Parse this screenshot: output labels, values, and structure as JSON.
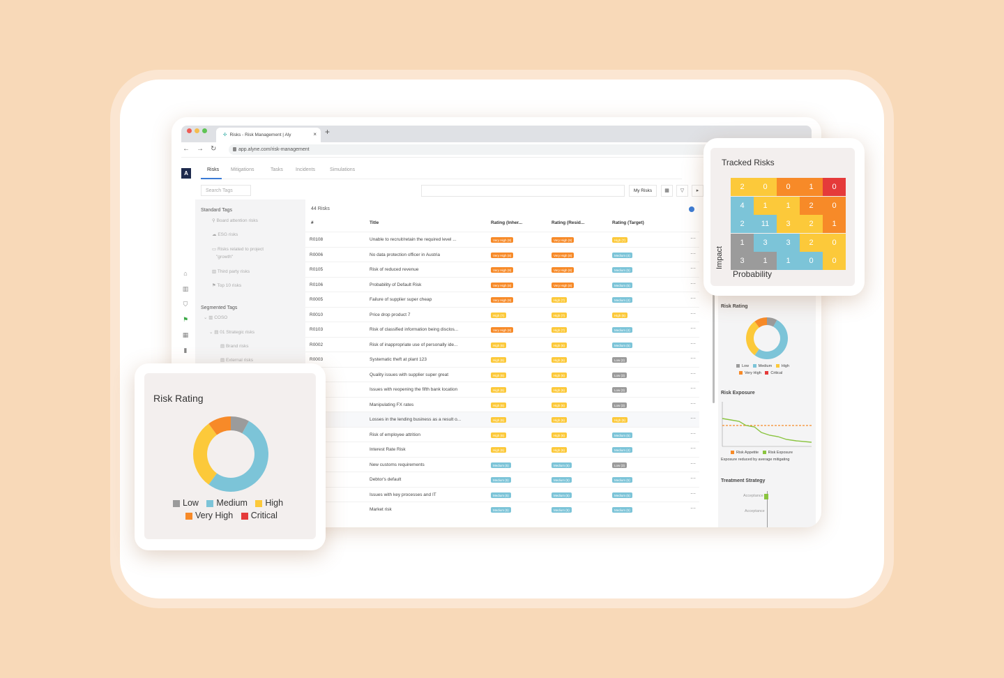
{
  "colors": {
    "low": "#9b9b9b",
    "medium": "#7cc4d8",
    "high": "#fcc93a",
    "very_high": "#f78a28",
    "critical": "#e53a3a",
    "accent": "#3a7bd5"
  },
  "browser": {
    "tab_title": "Risks - Risk Management | Aly",
    "tab_close": "×",
    "new_tab": "+",
    "url": "app.alyne.com/risk-management",
    "back": "←",
    "forward": "→",
    "reload": "↻"
  },
  "app": {
    "logo": "A",
    "tabs": [
      "Risks",
      "Mitigations",
      "Tasks",
      "Incidents",
      "Simulations"
    ],
    "search_tags_placeholder": "Search Tags",
    "my_risks": "My Risks"
  },
  "tags": {
    "standard_title": "Standard Tags",
    "standard": [
      "Board attention risks",
      "ESG risks",
      "Risks related to project",
      "\"growth\"",
      "Third party risks",
      "Top 10 risks"
    ],
    "segmented_title": "Segmented Tags",
    "segmented": [
      "COSO",
      "01 Strategic risks",
      "Brand risks",
      "External risks"
    ]
  },
  "table": {
    "count": "44 Risks",
    "headers": [
      "#",
      "Title",
      "Rating (Inher...",
      "Rating (Resid...",
      "Rating (Target)"
    ],
    "more": "···",
    "rows": [
      {
        "id": "R0108",
        "title": "Unable to recruit/retain the required level ...",
        "inh": "Very High (9)",
        "inh_c": "very_high",
        "res": "Very High (9)",
        "res_c": "very_high",
        "tgt": "High (7)",
        "tgt_c": "high"
      },
      {
        "id": "R0006",
        "title": "No data protection officer in Austria",
        "inh": "Very High (8)",
        "inh_c": "very_high",
        "res": "Very High (8)",
        "res_c": "very_high",
        "tgt": "Medium (4)",
        "tgt_c": "medium"
      },
      {
        "id": "R0105",
        "title": "Risk of reduced revenue",
        "inh": "Very High (9)",
        "inh_c": "very_high",
        "res": "Very High (8)",
        "res_c": "very_high",
        "tgt": "Medium (5)",
        "tgt_c": "medium"
      },
      {
        "id": "R0106",
        "title": "Probability of Default Risk",
        "inh": "Very High (8)",
        "inh_c": "very_high",
        "res": "Very High (8)",
        "res_c": "very_high",
        "tgt": "Medium (5)",
        "tgt_c": "medium"
      },
      {
        "id": "R0005",
        "title": "Failure of supplier super cheap",
        "inh": "Very High (9)",
        "inh_c": "very_high",
        "res": "High (7)",
        "res_c": "high",
        "tgt": "Medium (4)",
        "tgt_c": "medium"
      },
      {
        "id": "R0010",
        "title": "Price drop product 7",
        "inh": "High (7)",
        "inh_c": "high",
        "res": "High (7)",
        "res_c": "high",
        "tgt": "High (6)",
        "tgt_c": "high"
      },
      {
        "id": "R0103",
        "title": "Risk of classified information being disclos...",
        "inh": "Very High (8)",
        "inh_c": "very_high",
        "res": "High (7)",
        "res_c": "high",
        "tgt": "Medium (4)",
        "tgt_c": "medium"
      },
      {
        "id": "R0002",
        "title": "Risk of inappropriate use of personally ide...",
        "inh": "High (6)",
        "inh_c": "high",
        "res": "High (6)",
        "res_c": "high",
        "tgt": "Medium (5)",
        "tgt_c": "medium"
      },
      {
        "id": "R0003",
        "title": "Systematic theft at plant 123",
        "inh": "High (6)",
        "inh_c": "high",
        "res": "High (6)",
        "res_c": "high",
        "tgt": "Low (2)",
        "tgt_c": "low"
      },
      {
        "id": "",
        "title": "Quality issues with supplier super great",
        "inh": "High (6)",
        "inh_c": "high",
        "res": "High (6)",
        "res_c": "high",
        "tgt": "Low (3)",
        "tgt_c": "low"
      },
      {
        "id": "",
        "title": "Issues with reopening the fifth bank location",
        "inh": "High (6)",
        "inh_c": "high",
        "res": "High (6)",
        "res_c": "high",
        "tgt": "Low (3)",
        "tgt_c": "low"
      },
      {
        "id": "",
        "title": "Manipulating FX rates",
        "inh": "High (6)",
        "inh_c": "high",
        "res": "High (6)",
        "res_c": "high",
        "tgt": "Low (3)",
        "tgt_c": "low"
      },
      {
        "id": "",
        "title": "Losses in the lending business as a result o...",
        "inh": "High (6)",
        "inh_c": "high",
        "res": "High (6)",
        "res_c": "high",
        "tgt": "High (6)",
        "tgt_c": "high"
      },
      {
        "id": "",
        "title": "Risk of employee attrition",
        "inh": "High (6)",
        "inh_c": "high",
        "res": "High (6)",
        "res_c": "high",
        "tgt": "Medium (5)",
        "tgt_c": "medium"
      },
      {
        "id": "",
        "title": "Interest Rate Risk",
        "inh": "High (6)",
        "inh_c": "high",
        "res": "High (6)",
        "res_c": "high",
        "tgt": "Medium (4)",
        "tgt_c": "medium"
      },
      {
        "id": "",
        "title": "New customs requirements",
        "inh": "Medium (5)",
        "inh_c": "medium",
        "res": "Medium (5)",
        "res_c": "medium",
        "tgt": "Low (3)",
        "tgt_c": "low"
      },
      {
        "id": "",
        "title": "Debtor's default",
        "inh": "Medium (5)",
        "inh_c": "medium",
        "res": "Medium (5)",
        "res_c": "medium",
        "tgt": "Medium (5)",
        "tgt_c": "medium"
      },
      {
        "id": "",
        "title": "Issues with key processes and IT",
        "inh": "Medium (5)",
        "inh_c": "medium",
        "res": "Medium (5)",
        "res_c": "medium",
        "tgt": "Medium (5)",
        "tgt_c": "medium"
      },
      {
        "id": "",
        "title": "Market risk",
        "inh": "Medium (5)",
        "inh_c": "medium",
        "res": "Medium (5)",
        "res_c": "medium",
        "tgt": "Medium (5)",
        "tgt_c": "medium"
      }
    ]
  },
  "right_panel": {
    "risk_rating_title": "Risk Rating",
    "risk_exposure_title": "Risk Exposure",
    "exposure_legend": [
      "Risk Appetite",
      "Risk Exposure"
    ],
    "exposure_note": "Exposure reduced by average mitigating",
    "treatment_title": "Treatment Strategy",
    "treatment_labels": [
      "Acceptance",
      "Acceptance"
    ]
  },
  "tracked_risks": {
    "title": "Tracked Risks",
    "ylabel": "Impact",
    "xlabel": "Probability",
    "grid": [
      [
        {
          "v": "2",
          "c": "high"
        },
        {
          "v": "0",
          "c": "high"
        },
        {
          "v": "0",
          "c": "very_high"
        },
        {
          "v": "1",
          "c": "very_high"
        },
        {
          "v": "0",
          "c": "critical"
        }
      ],
      [
        {
          "v": "4",
          "c": "medium"
        },
        {
          "v": "1",
          "c": "high"
        },
        {
          "v": "1",
          "c": "high"
        },
        {
          "v": "2",
          "c": "very_high"
        },
        {
          "v": "0",
          "c": "very_high"
        }
      ],
      [
        {
          "v": "2",
          "c": "medium"
        },
        {
          "v": "11",
          "c": "medium"
        },
        {
          "v": "3",
          "c": "high"
        },
        {
          "v": "2",
          "c": "high"
        },
        {
          "v": "1",
          "c": "very_high"
        }
      ],
      [
        {
          "v": "1",
          "c": "low"
        },
        {
          "v": "3",
          "c": "medium"
        },
        {
          "v": "3",
          "c": "medium"
        },
        {
          "v": "2",
          "c": "high"
        },
        {
          "v": "0",
          "c": "high"
        }
      ],
      [
        {
          "v": "3",
          "c": "low"
        },
        {
          "v": "1",
          "c": "low"
        },
        {
          "v": "1",
          "c": "medium"
        },
        {
          "v": "0",
          "c": "medium"
        },
        {
          "v": "0",
          "c": "high"
        }
      ]
    ]
  },
  "risk_rating": {
    "title": "Risk Rating",
    "legend": [
      {
        "label": "Low",
        "c": "low"
      },
      {
        "label": "Medium",
        "c": "medium"
      },
      {
        "label": "High",
        "c": "high"
      },
      {
        "label": "Very High",
        "c": "very_high"
      },
      {
        "label": "Critical",
        "c": "critical"
      }
    ],
    "slices": [
      {
        "name": "Low",
        "value": 8,
        "c": "low"
      },
      {
        "name": "Medium",
        "value": 52,
        "c": "medium"
      },
      {
        "name": "High",
        "value": 30,
        "c": "high"
      },
      {
        "name": "Very High",
        "value": 10,
        "c": "very_high"
      }
    ]
  }
}
